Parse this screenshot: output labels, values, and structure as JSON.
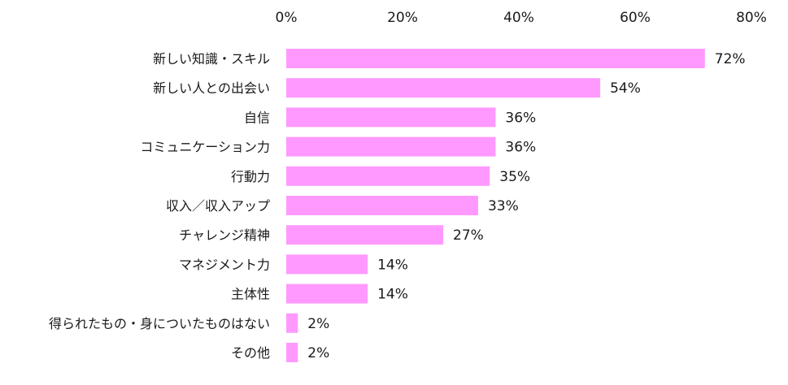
{
  "chart_data": {
    "type": "bar",
    "orientation": "horizontal",
    "categories": [
      "新しい知識・スキル",
      "新しい人との出会い",
      "自信",
      "コミュニケーション力",
      "行動力",
      "収入／収入アップ",
      "チャレンジ精神",
      "マネジメント力",
      "主体性",
      "得られたもの・身についたものはない",
      "その他"
    ],
    "values": [
      72,
      54,
      36,
      36,
      35,
      33,
      27,
      14,
      14,
      2,
      2
    ],
    "value_labels": [
      "72%",
      "54%",
      "36%",
      "36%",
      "35%",
      "33%",
      "27%",
      "14%",
      "14%",
      "2%",
      "2%"
    ],
    "xlim": [
      0,
      80
    ],
    "x_ticks": [
      0,
      20,
      40,
      60,
      80
    ],
    "x_tick_labels": [
      "0%",
      "20%",
      "40%",
      "60%",
      "80%"
    ],
    "axis_position": "top",
    "grid": false,
    "legend": "none",
    "bar_color": "#ff99ff"
  }
}
